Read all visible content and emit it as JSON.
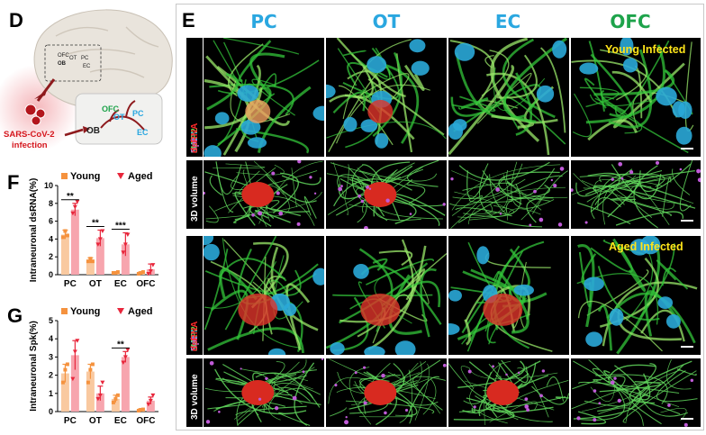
{
  "panels": {
    "D": {
      "letter": "D",
      "regions_top": [
        "OFC",
        "OT",
        "PC",
        "OB",
        "EC"
      ],
      "diagram_labels": {
        "ofc": "OFC",
        "ot": "OT",
        "pc": "PC",
        "ob": "OB",
        "ec": "EC"
      },
      "virus_line1": "SARS-CoV-2",
      "virus_line2": "infection"
    },
    "E": {
      "letter": "E",
      "columns": [
        "PC",
        "OT",
        "EC",
        "OFC"
      ],
      "young_label": "Young Infected",
      "aged_label": "Aged Infected",
      "volume_label": "3D volume",
      "stain_label": {
        "dapi": "DAPI",
        "map2": "MAP2",
        "spk": "Spk",
        "dsrna": "dsRNA"
      }
    },
    "F": {
      "letter": "F"
    },
    "G": {
      "letter": "G"
    }
  },
  "colors": {
    "young": "#f5923e",
    "aged": "#e8263b",
    "young_bar": "#f9c9a0",
    "aged_bar": "#f7a5ae",
    "column_header": "#2aa7e0",
    "ofc_header": "#1ea34b",
    "infected_label": "#ffe51a"
  },
  "chart_data": [
    {
      "type": "bar",
      "panel": "F",
      "ylabel": "Intraneuronal dsRNA(%)",
      "categories": [
        "PC",
        "OT",
        "EC",
        "OFC"
      ],
      "ylim": [
        0,
        10
      ],
      "yticks": [
        0,
        2,
        4,
        6,
        8,
        10
      ],
      "legend": [
        "Young",
        "Aged"
      ],
      "series": [
        {
          "name": "Young",
          "values": [
            4.5,
            1.6,
            0.2,
            0.2
          ],
          "errors": [
            0.5,
            0.3,
            0.1,
            0.1
          ],
          "points": [
            [
              4.2,
              4.9,
              4.4
            ],
            [
              1.5,
              1.8,
              1.5
            ],
            [
              0.2,
              0.2,
              0.3
            ],
            [
              0.1,
              0.2,
              0.3
            ]
          ]
        },
        {
          "name": "Aged",
          "values": [
            7.3,
            4.1,
            3.4,
            0.6
          ],
          "errors": [
            0.7,
            0.9,
            1.3,
            0.6
          ],
          "points": [
            [
              6.9,
              7.6,
              8.2
            ],
            [
              3.4,
              4.0,
              4.9
            ],
            [
              2.5,
              3.4,
              4.5
            ],
            [
              0.1,
              0.4,
              1.1
            ]
          ]
        }
      ],
      "significance": [
        {
          "category": "PC",
          "label": "**"
        },
        {
          "category": "OT",
          "label": "**"
        },
        {
          "category": "EC",
          "label": "***"
        }
      ]
    },
    {
      "type": "bar",
      "panel": "G",
      "ylabel": "Intraneuronal Spk(%)",
      "categories": [
        "PC",
        "OT",
        "EC",
        "OFC"
      ],
      "ylim": [
        0,
        5
      ],
      "yticks": [
        0,
        1,
        2,
        3,
        4,
        5
      ],
      "legend": [
        "Young",
        "Aged"
      ],
      "series": [
        {
          "name": "Young",
          "values": [
            2.1,
            2.2,
            0.7,
            0.1
          ],
          "errors": [
            0.5,
            0.4,
            0.2,
            0.05
          ],
          "points": [
            [
              1.6,
              2.3,
              2.6
            ],
            [
              1.6,
              2.3,
              2.6
            ],
            [
              0.5,
              0.7,
              0.9
            ],
            [
              0.05,
              0.1,
              0.12
            ]
          ]
        },
        {
          "name": "Aged",
          "values": [
            3.1,
            1.0,
            3.0,
            0.6
          ],
          "errors": [
            0.8,
            0.4,
            0.3,
            0.2
          ],
          "points": [
            [
              1.8,
              3.3,
              3.9
            ],
            [
              0.7,
              0.9,
              1.6
            ],
            [
              2.7,
              3.0,
              3.4
            ],
            [
              0.4,
              0.6,
              0.9
            ]
          ]
        }
      ],
      "significance": [
        {
          "category": "EC",
          "label": "**"
        }
      ]
    }
  ]
}
